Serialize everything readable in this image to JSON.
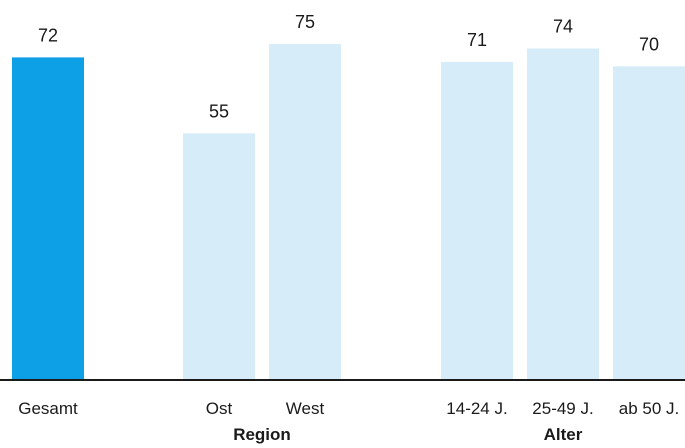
{
  "chart_data": {
    "type": "bar",
    "categories": [
      "Gesamt",
      "Ost",
      "West",
      "14-24 J.",
      "25-49 J.",
      "ab 50 J."
    ],
    "values": [
      72,
      55,
      75,
      71,
      74,
      70
    ],
    "groups": [
      {
        "label": "Region",
        "categories": [
          "Ost",
          "West"
        ]
      },
      {
        "label": "Alter",
        "categories": [
          "14-24 J.",
          "25-49 J.",
          "ab 50 J."
        ]
      }
    ],
    "ylim": [
      0,
      75
    ],
    "grid": false,
    "colors": {
      "highlight": "#0da0e6",
      "default": "#d6ecf9",
      "axis": "#1a1a1a"
    }
  }
}
